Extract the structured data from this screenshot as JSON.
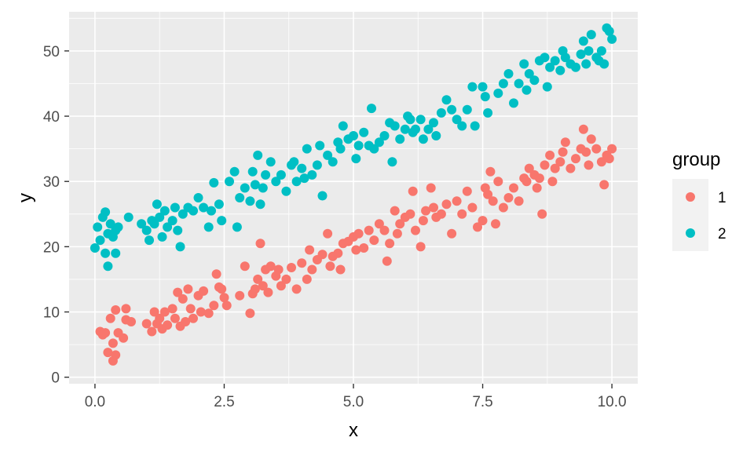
{
  "chart_data": {
    "type": "scatter",
    "xlabel": "x",
    "ylabel": "y",
    "xlim": [
      -0.5,
      10.5
    ],
    "ylim": [
      -1.0,
      56.0
    ],
    "x_ticks": [
      0.0,
      2.5,
      5.0,
      7.5,
      10.0
    ],
    "x_tick_labels": [
      "0.0",
      "2.5",
      "5.0",
      "7.5",
      "10.0"
    ],
    "y_ticks": [
      0,
      10,
      20,
      30,
      40,
      50
    ],
    "y_tick_labels": [
      "0",
      "10",
      "20",
      "30",
      "40",
      "50"
    ],
    "grid": true,
    "legend": {
      "title": "group",
      "position": "right"
    },
    "series": [
      {
        "name": "1",
        "color": "#F8766D",
        "points": [
          [
            0.1,
            7.0
          ],
          [
            0.15,
            6.5
          ],
          [
            0.2,
            6.8
          ],
          [
            0.25,
            3.8
          ],
          [
            0.3,
            9.0
          ],
          [
            0.35,
            5.2
          ],
          [
            0.35,
            2.5
          ],
          [
            0.4,
            3.4
          ],
          [
            0.4,
            10.3
          ],
          [
            0.45,
            6.8
          ],
          [
            0.55,
            6.0
          ],
          [
            0.6,
            8.8
          ],
          [
            0.6,
            10.5
          ],
          [
            0.7,
            8.5
          ],
          [
            1.0,
            8.2
          ],
          [
            1.1,
            7.0
          ],
          [
            1.15,
            10.0
          ],
          [
            1.2,
            8.2
          ],
          [
            1.25,
            9.0
          ],
          [
            1.3,
            7.4
          ],
          [
            1.35,
            10.0
          ],
          [
            1.4,
            8.0
          ],
          [
            1.5,
            10.5
          ],
          [
            1.55,
            9.0
          ],
          [
            1.6,
            13.0
          ],
          [
            1.65,
            7.8
          ],
          [
            1.7,
            12.0
          ],
          [
            1.75,
            8.5
          ],
          [
            1.8,
            13.5
          ],
          [
            1.85,
            10.5
          ],
          [
            1.9,
            9.0
          ],
          [
            2.0,
            12.5
          ],
          [
            2.05,
            10.0
          ],
          [
            2.1,
            13.2
          ],
          [
            2.2,
            9.8
          ],
          [
            2.3,
            11.0
          ],
          [
            2.35,
            15.8
          ],
          [
            2.4,
            13.8
          ],
          [
            2.45,
            13.5
          ],
          [
            2.5,
            12.2
          ],
          [
            2.55,
            11.0
          ],
          [
            2.8,
            12.5
          ],
          [
            2.9,
            17.0
          ],
          [
            3.0,
            9.8
          ],
          [
            3.05,
            12.8
          ],
          [
            3.1,
            13.5
          ],
          [
            3.15,
            15.0
          ],
          [
            3.2,
            20.5
          ],
          [
            3.25,
            14.0
          ],
          [
            3.3,
            16.5
          ],
          [
            3.35,
            13.0
          ],
          [
            3.4,
            17.0
          ],
          [
            3.5,
            15.5
          ],
          [
            3.55,
            16.5
          ],
          [
            3.6,
            14.0
          ],
          [
            3.7,
            15.0
          ],
          [
            3.8,
            16.8
          ],
          [
            3.9,
            13.5
          ],
          [
            4.0,
            17.5
          ],
          [
            4.1,
            15.0
          ],
          [
            4.15,
            19.5
          ],
          [
            4.2,
            16.5
          ],
          [
            4.3,
            18.0
          ],
          [
            4.4,
            18.8
          ],
          [
            4.5,
            22.0
          ],
          [
            4.55,
            17.0
          ],
          [
            4.6,
            18.5
          ],
          [
            4.7,
            19.0
          ],
          [
            4.75,
            16.5
          ],
          [
            4.8,
            20.5
          ],
          [
            4.9,
            20.8
          ],
          [
            5.0,
            21.5
          ],
          [
            5.05,
            19.5
          ],
          [
            5.1,
            22.0
          ],
          [
            5.2,
            19.8
          ],
          [
            5.3,
            22.5
          ],
          [
            5.4,
            21.0
          ],
          [
            5.5,
            23.5
          ],
          [
            5.6,
            22.5
          ],
          [
            5.65,
            17.8
          ],
          [
            5.7,
            20.5
          ],
          [
            5.8,
            25.5
          ],
          [
            5.85,
            22.0
          ],
          [
            5.9,
            23.5
          ],
          [
            6.0,
            24.5
          ],
          [
            6.1,
            25.0
          ],
          [
            6.15,
            28.5
          ],
          [
            6.2,
            22.5
          ],
          [
            6.3,
            20.0
          ],
          [
            6.35,
            24.0
          ],
          [
            6.4,
            25.5
          ],
          [
            6.5,
            29.0
          ],
          [
            6.55,
            26.0
          ],
          [
            6.6,
            24.5
          ],
          [
            6.7,
            25.0
          ],
          [
            6.8,
            26.5
          ],
          [
            6.9,
            22.0
          ],
          [
            7.0,
            27.0
          ],
          [
            7.1,
            25.0
          ],
          [
            7.2,
            28.5
          ],
          [
            7.3,
            26.0
          ],
          [
            7.4,
            23.0
          ],
          [
            7.5,
            24.0
          ],
          [
            7.55,
            29.0
          ],
          [
            7.6,
            28.0
          ],
          [
            7.65,
            31.5
          ],
          [
            7.7,
            27.0
          ],
          [
            7.75,
            23.5
          ],
          [
            7.8,
            30.0
          ],
          [
            7.9,
            26.0
          ],
          [
            8.0,
            27.5
          ],
          [
            8.1,
            29.0
          ],
          [
            8.2,
            27.0
          ],
          [
            8.3,
            30.5
          ],
          [
            8.35,
            30.0
          ],
          [
            8.4,
            32.0
          ],
          [
            8.5,
            31.0
          ],
          [
            8.55,
            29.0
          ],
          [
            8.6,
            30.5
          ],
          [
            8.65,
            25.0
          ],
          [
            8.7,
            32.5
          ],
          [
            8.8,
            34.0
          ],
          [
            8.85,
            30.0
          ],
          [
            8.9,
            32.0
          ],
          [
            9.0,
            33.0
          ],
          [
            9.05,
            34.5
          ],
          [
            9.1,
            36.0
          ],
          [
            9.2,
            32.0
          ],
          [
            9.3,
            33.5
          ],
          [
            9.4,
            35.0
          ],
          [
            9.45,
            38.0
          ],
          [
            9.5,
            34.5
          ],
          [
            9.55,
            32.5
          ],
          [
            9.6,
            36.5
          ],
          [
            9.7,
            35.0
          ],
          [
            9.8,
            33.0
          ],
          [
            9.85,
            29.5
          ],
          [
            9.9,
            34.0
          ],
          [
            9.95,
            33.5
          ],
          [
            10.0,
            35.0
          ]
        ]
      },
      {
        "name": "2",
        "color": "#00BFC4",
        "points": [
          [
            0.0,
            19.8
          ],
          [
            0.05,
            23.0
          ],
          [
            0.1,
            21.0
          ],
          [
            0.15,
            24.5
          ],
          [
            0.2,
            25.3
          ],
          [
            0.2,
            19.0
          ],
          [
            0.25,
            17.0
          ],
          [
            0.25,
            22.0
          ],
          [
            0.3,
            23.5
          ],
          [
            0.35,
            21.5
          ],
          [
            0.4,
            22.5
          ],
          [
            0.4,
            19.0
          ],
          [
            0.45,
            23.0
          ],
          [
            0.65,
            24.5
          ],
          [
            0.9,
            23.5
          ],
          [
            1.0,
            22.5
          ],
          [
            1.05,
            21.0
          ],
          [
            1.1,
            24.0
          ],
          [
            1.15,
            23.5
          ],
          [
            1.2,
            26.5
          ],
          [
            1.25,
            24.5
          ],
          [
            1.3,
            21.5
          ],
          [
            1.35,
            25.5
          ],
          [
            1.4,
            23.0
          ],
          [
            1.5,
            24.0
          ],
          [
            1.55,
            26.0
          ],
          [
            1.6,
            22.5
          ],
          [
            1.65,
            20.0
          ],
          [
            1.7,
            25.0
          ],
          [
            1.8,
            26.0
          ],
          [
            1.9,
            25.5
          ],
          [
            2.0,
            27.5
          ],
          [
            2.1,
            26.0
          ],
          [
            2.2,
            23.0
          ],
          [
            2.25,
            25.5
          ],
          [
            2.3,
            29.8
          ],
          [
            2.4,
            26.5
          ],
          [
            2.45,
            24.0
          ],
          [
            2.6,
            30.0
          ],
          [
            2.7,
            31.5
          ],
          [
            2.75,
            23.0
          ],
          [
            2.8,
            27.5
          ],
          [
            2.9,
            29.0
          ],
          [
            3.0,
            27.0
          ],
          [
            3.05,
            31.5
          ],
          [
            3.1,
            29.5
          ],
          [
            3.15,
            34.0
          ],
          [
            3.2,
            26.5
          ],
          [
            3.25,
            29.0
          ],
          [
            3.3,
            31.0
          ],
          [
            3.4,
            33.0
          ],
          [
            3.5,
            30.0
          ],
          [
            3.6,
            31.0
          ],
          [
            3.7,
            28.5
          ],
          [
            3.8,
            32.5
          ],
          [
            3.85,
            33.0
          ],
          [
            3.9,
            30.0
          ],
          [
            4.0,
            32.0
          ],
          [
            4.05,
            30.5
          ],
          [
            4.1,
            35.0
          ],
          [
            4.2,
            31.0
          ],
          [
            4.3,
            32.5
          ],
          [
            4.35,
            35.5
          ],
          [
            4.4,
            27.8
          ],
          [
            4.5,
            34.0
          ],
          [
            4.6,
            33.0
          ],
          [
            4.7,
            36.0
          ],
          [
            4.75,
            35.0
          ],
          [
            4.8,
            38.5
          ],
          [
            4.9,
            36.5
          ],
          [
            5.0,
            37.0
          ],
          [
            5.05,
            33.5
          ],
          [
            5.1,
            35.5
          ],
          [
            5.2,
            37.5
          ],
          [
            5.3,
            35.5
          ],
          [
            5.35,
            41.2
          ],
          [
            5.4,
            35.0
          ],
          [
            5.5,
            36.0
          ],
          [
            5.6,
            37.0
          ],
          [
            5.7,
            39.0
          ],
          [
            5.75,
            33.0
          ],
          [
            5.8,
            38.5
          ],
          [
            5.9,
            36.5
          ],
          [
            6.0,
            38.0
          ],
          [
            6.05,
            40.0
          ],
          [
            6.1,
            39.5
          ],
          [
            6.15,
            37.5
          ],
          [
            6.2,
            38.0
          ],
          [
            6.3,
            39.5
          ],
          [
            6.35,
            36.5
          ],
          [
            6.45,
            38.0
          ],
          [
            6.55,
            39.0
          ],
          [
            6.6,
            37.0
          ],
          [
            6.7,
            40.5
          ],
          [
            6.8,
            42.5
          ],
          [
            6.9,
            41.0
          ],
          [
            7.0,
            39.5
          ],
          [
            7.1,
            38.5
          ],
          [
            7.2,
            41.0
          ],
          [
            7.3,
            44.5
          ],
          [
            7.35,
            38.5
          ],
          [
            7.5,
            44.5
          ],
          [
            7.55,
            43.0
          ],
          [
            7.6,
            40.5
          ],
          [
            7.8,
            43.5
          ],
          [
            7.9,
            45.0
          ],
          [
            8.0,
            46.5
          ],
          [
            8.1,
            42.0
          ],
          [
            8.2,
            45.0
          ],
          [
            8.3,
            48.0
          ],
          [
            8.35,
            44.0
          ],
          [
            8.4,
            46.5
          ],
          [
            8.5,
            45.5
          ],
          [
            8.6,
            48.5
          ],
          [
            8.7,
            49.0
          ],
          [
            8.75,
            44.5
          ],
          [
            8.8,
            47.5
          ],
          [
            8.9,
            48.5
          ],
          [
            9.0,
            47.0
          ],
          [
            9.05,
            50.0
          ],
          [
            9.1,
            49.0
          ],
          [
            9.2,
            48.0
          ],
          [
            9.3,
            47.5
          ],
          [
            9.4,
            49.5
          ],
          [
            9.45,
            51.5
          ],
          [
            9.5,
            48.0
          ],
          [
            9.55,
            50.0
          ],
          [
            9.6,
            52.5
          ],
          [
            9.7,
            49.0
          ],
          [
            9.75,
            48.5
          ],
          [
            9.8,
            50.0
          ],
          [
            9.85,
            48.0
          ],
          [
            9.9,
            53.5
          ],
          [
            9.95,
            53.0
          ],
          [
            10.0,
            51.8
          ]
        ]
      }
    ]
  }
}
